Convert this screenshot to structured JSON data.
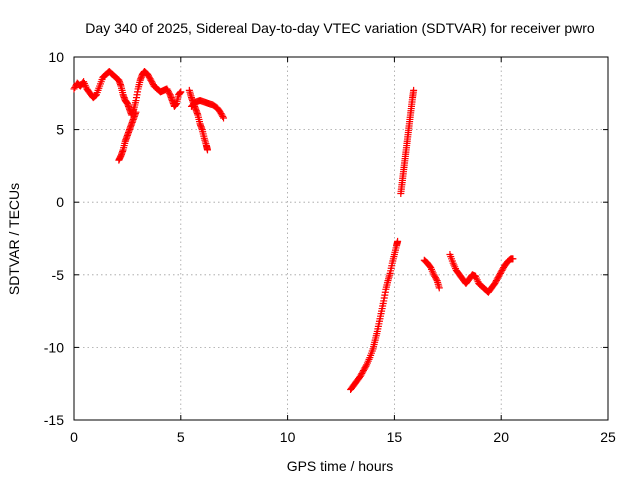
{
  "chart_data": {
    "type": "scatter",
    "title": "Day 340 of 2025, Sidereal Day-to-day VTEC variation (SDTVAR) for receiver pwro",
    "xlabel": "GPS time / hours",
    "ylabel": "SDTVAR / TECUs",
    "xlim": [
      0,
      25
    ],
    "ylim": [
      -15,
      10
    ],
    "xticks": [
      "0",
      "5",
      "10",
      "15",
      "20",
      "25"
    ],
    "yticks": [
      "10",
      "5",
      "0",
      "-5",
      "-10",
      "-15"
    ],
    "grid": true,
    "marker": "+",
    "series": [
      {
        "name": "SDTVAR",
        "color": "#ff0000",
        "segments": [
          [
            [
              0.0,
              7.8
            ],
            [
              0.15,
              8.2
            ],
            [
              0.3,
              8.0
            ],
            [
              0.45,
              8.3
            ],
            [
              0.6,
              7.8
            ],
            [
              0.75,
              7.5
            ],
            [
              0.9,
              7.2
            ],
            [
              1.05,
              7.4
            ],
            [
              1.2,
              8.0
            ],
            [
              1.35,
              8.6
            ],
            [
              1.5,
              8.8
            ],
            [
              1.65,
              9.0
            ],
            [
              1.8,
              8.8
            ],
            [
              1.95,
              8.6
            ],
            [
              2.1,
              8.4
            ],
            [
              2.2,
              8.0
            ],
            [
              2.3,
              7.4
            ],
            [
              2.4,
              7.0
            ],
            [
              2.5,
              6.8
            ],
            [
              2.6,
              6.4
            ],
            [
              2.7,
              6.0
            ],
            [
              2.8,
              6.4
            ],
            [
              2.9,
              7.0
            ],
            [
              3.0,
              7.8
            ],
            [
              3.1,
              8.4
            ],
            [
              3.2,
              8.8
            ],
            [
              3.3,
              9.0
            ],
            [
              3.45,
              8.8
            ],
            [
              3.6,
              8.4
            ],
            [
              3.75,
              8.0
            ],
            [
              3.9,
              7.8
            ],
            [
              4.05,
              7.6
            ],
            [
              4.2,
              7.7
            ],
            [
              4.35,
              7.8
            ],
            [
              4.5,
              7.4
            ],
            [
              4.6,
              7.0
            ],
            [
              4.7,
              6.6
            ],
            [
              4.8,
              6.8
            ],
            [
              4.9,
              7.4
            ],
            [
              5.0,
              7.6
            ]
          ],
          [
            [
              2.1,
              2.9
            ],
            [
              2.2,
              3.2
            ],
            [
              2.3,
              3.6
            ],
            [
              2.4,
              4.2
            ],
            [
              2.5,
              4.6
            ],
            [
              2.6,
              5.0
            ],
            [
              2.7,
              5.4
            ],
            [
              2.8,
              5.8
            ],
            [
              2.9,
              6.2
            ]
          ],
          [
            [
              5.4,
              7.7
            ],
            [
              5.5,
              7.2
            ],
            [
              5.6,
              6.8
            ],
            [
              5.7,
              6.4
            ],
            [
              5.8,
              6.0
            ],
            [
              5.9,
              5.4
            ],
            [
              6.0,
              5.0
            ],
            [
              6.1,
              4.4
            ],
            [
              6.2,
              3.9
            ],
            [
              6.25,
              3.6
            ]
          ],
          [
            [
              5.5,
              6.6
            ],
            [
              5.7,
              6.9
            ],
            [
              5.9,
              7.0
            ],
            [
              6.1,
              6.9
            ],
            [
              6.3,
              6.8
            ],
            [
              6.5,
              6.7
            ],
            [
              6.7,
              6.5
            ],
            [
              6.85,
              6.2
            ],
            [
              7.0,
              5.8
            ]
          ],
          [
            [
              12.95,
              -12.9
            ],
            [
              13.1,
              -12.6
            ],
            [
              13.25,
              -12.3
            ],
            [
              13.4,
              -12.0
            ],
            [
              13.55,
              -11.6
            ],
            [
              13.7,
              -11.2
            ],
            [
              13.85,
              -10.7
            ],
            [
              14.0,
              -10.1
            ],
            [
              14.1,
              -9.5
            ],
            [
              14.2,
              -8.9
            ],
            [
              14.3,
              -8.2
            ],
            [
              14.4,
              -7.5
            ],
            [
              14.5,
              -6.8
            ],
            [
              14.6,
              -6.0
            ],
            [
              14.7,
              -5.4
            ],
            [
              14.8,
              -4.9
            ],
            [
              14.9,
              -4.2
            ],
            [
              15.0,
              -3.6
            ],
            [
              15.1,
              -3.0
            ],
            [
              15.15,
              -2.7
            ]
          ],
          [
            [
              15.3,
              0.6
            ],
            [
              15.35,
              1.2
            ],
            [
              15.4,
              1.8
            ],
            [
              15.45,
              2.4
            ],
            [
              15.5,
              3.0
            ],
            [
              15.55,
              3.6
            ],
            [
              15.6,
              4.2
            ],
            [
              15.65,
              4.8
            ],
            [
              15.7,
              5.4
            ],
            [
              15.75,
              6.0
            ],
            [
              15.8,
              6.6
            ],
            [
              15.85,
              7.2
            ],
            [
              15.9,
              7.7
            ]
          ],
          [
            [
              16.4,
              -4.0
            ],
            [
              16.55,
              -4.2
            ],
            [
              16.7,
              -4.5
            ],
            [
              16.85,
              -5.0
            ],
            [
              17.0,
              -5.4
            ],
            [
              17.1,
              -5.9
            ]
          ],
          [
            [
              17.6,
              -3.6
            ],
            [
              17.75,
              -4.2
            ],
            [
              17.9,
              -4.7
            ],
            [
              18.05,
              -5.0
            ],
            [
              18.2,
              -5.3
            ],
            [
              18.35,
              -5.6
            ],
            [
              18.5,
              -5.3
            ],
            [
              18.65,
              -5.0
            ],
            [
              18.8,
              -5.1
            ],
            [
              18.95,
              -5.6
            ],
            [
              19.1,
              -5.8
            ],
            [
              19.25,
              -6.0
            ],
            [
              19.4,
              -6.2
            ],
            [
              19.55,
              -5.9
            ],
            [
              19.7,
              -5.6
            ],
            [
              19.85,
              -5.2
            ],
            [
              20.0,
              -4.8
            ],
            [
              20.15,
              -4.4
            ],
            [
              20.3,
              -4.1
            ],
            [
              20.45,
              -3.9
            ],
            [
              20.55,
              -3.9
            ]
          ]
        ]
      }
    ]
  }
}
